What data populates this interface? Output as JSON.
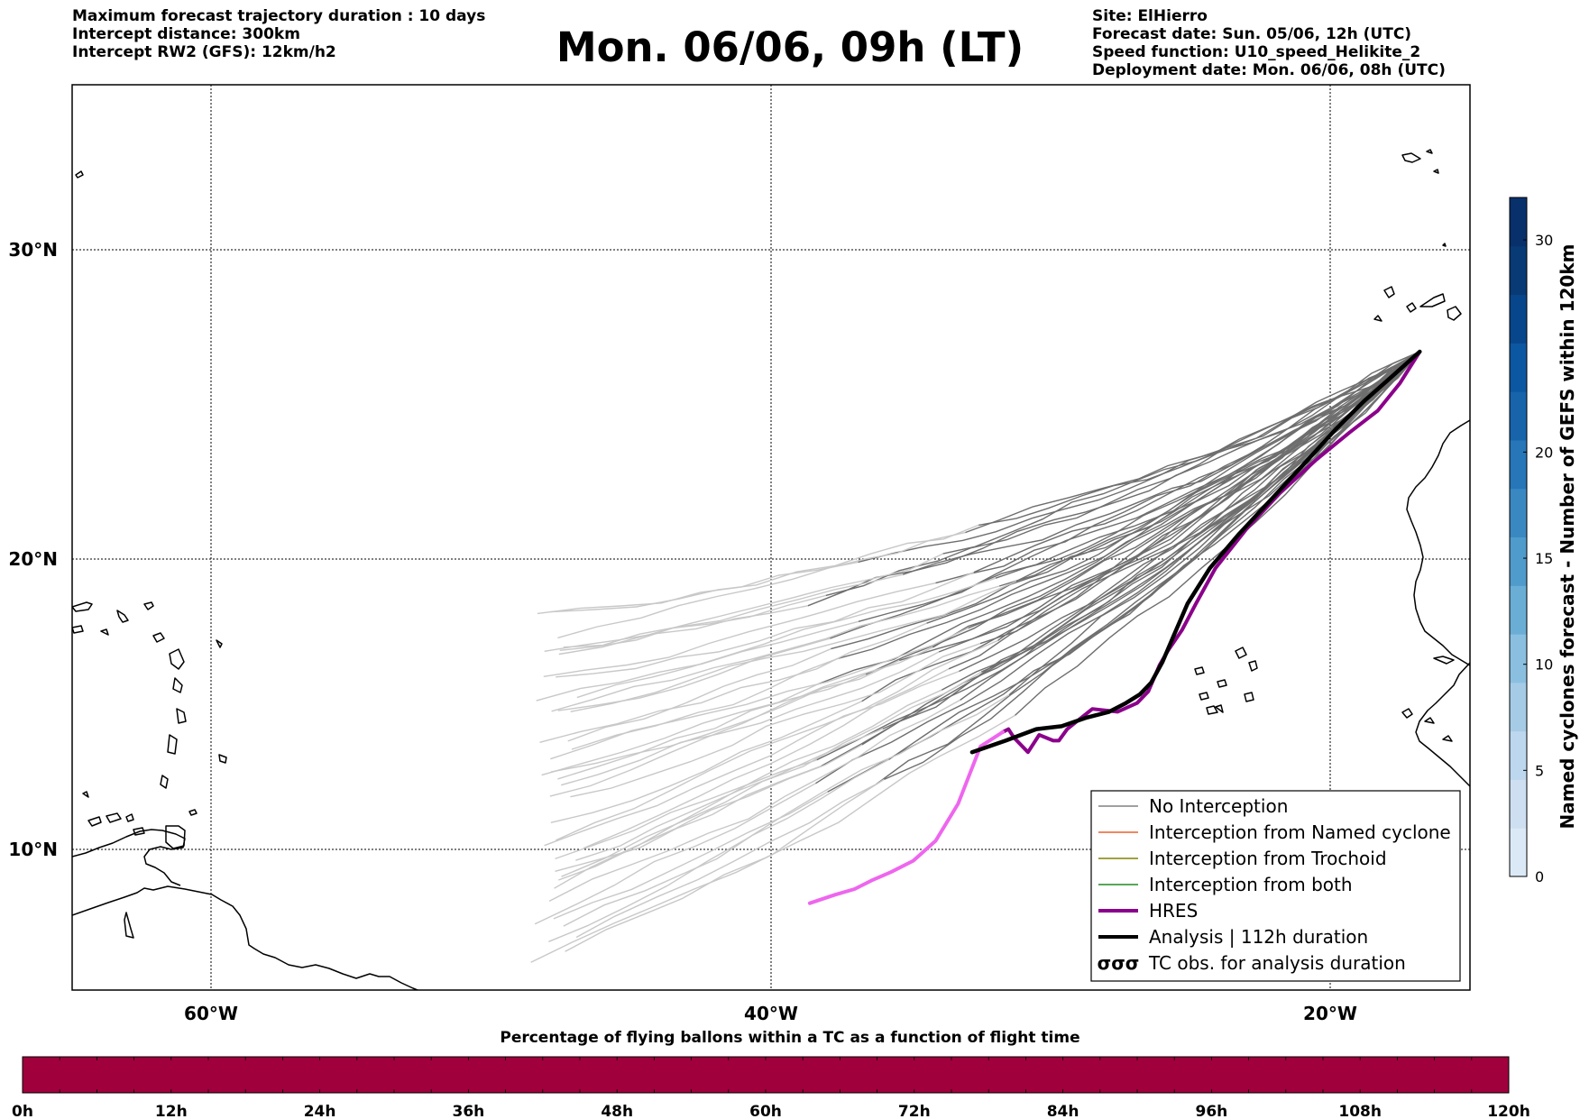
{
  "header_left": [
    "Maximum forecast trajectory duration : 10 days",
    "Intercept distance: 300km",
    "Intercept RW2 (GFS):  12km/h2"
  ],
  "header_right": [
    "Site: ElHierro",
    "Forecast date: Sun. 05/06, 12h (UTC)",
    "Speed function: U10_speed_Helikite_2",
    "Deployment date: Mon. 06/06, 08h (UTC)"
  ],
  "title": "Mon. 06/06, 09h (LT)",
  "map": {
    "lon_ticks": [
      "60°W",
      "40°W",
      "20°W"
    ],
    "lat_ticks": [
      "30°N",
      "20°N",
      "10°N"
    ],
    "grid": "dotted",
    "lon_range": [
      -65,
      -15
    ],
    "lat_range": [
      4.6,
      33.9
    ]
  },
  "legend": {
    "placement": "lower-right",
    "items": [
      {
        "label": "No Interception",
        "color": "#808080"
      },
      {
        "label": "Interception from Named cyclone",
        "color": "#e8602c"
      },
      {
        "label": "Interception from Trochoid",
        "color": "#808000"
      },
      {
        "label": "Interception from both",
        "color": "#1f8a1f"
      },
      {
        "label": "HRES",
        "color": "#8b008b"
      },
      {
        "label": "Analysis | 112h duration",
        "color": "#000000"
      },
      {
        "label": "TC obs. for analysis duration",
        "color": "#000000",
        "icon": "cyclone-symbols-icon"
      }
    ]
  },
  "colorbar_right": {
    "label": "Named cyclones forecast - Number of GEFS within 120km",
    "ticks": [
      "0",
      "5",
      "10",
      "15",
      "20",
      "30"
    ],
    "colors": [
      "#dbe9f6",
      "#cddff1",
      "#bcd7ee",
      "#a6cbe6",
      "#8abfe0",
      "#6aaed6",
      "#4f9bcb",
      "#3a88c1",
      "#2676b8",
      "#1764ab",
      "#0c57a1",
      "#08468b",
      "#083a75",
      "#08306b"
    ]
  },
  "colorbar_bottom": {
    "title": "Percentage of flying ballons within a TC as a function of flight time",
    "ticks": [
      "0h",
      "12h",
      "24h",
      "36h",
      "48h",
      "60h",
      "72h",
      "84h",
      "96h",
      "108h",
      "120h"
    ],
    "fill_color": "#a0003c"
  },
  "chart_data": {
    "type": "line",
    "series": [
      {
        "name": "HRES",
        "color": "#8b008b",
        "x": [
          -16.8,
          -17.5,
          -18.3,
          -19.3,
          -20.5,
          -21.8,
          -23.0,
          -24.1,
          -24.8,
          -25.3,
          -25.8,
          -26.1,
          -26.5,
          -26.9,
          -27.6,
          -28.5,
          -29.4,
          -29.7,
          -29.9,
          -30.4,
          -30.8,
          -31.3,
          -31.5,
          -31.7
        ],
        "y": [
          26.8,
          25.8,
          24.9,
          24.2,
          23.3,
          22.2,
          21.0,
          19.7,
          18.5,
          17.6,
          16.9,
          16.4,
          15.5,
          15.1,
          14.8,
          14.9,
          14.2,
          13.8,
          13.8,
          14.0,
          13.4,
          13.9,
          14.2,
          14.1
        ],
        "note": "solid purple section"
      },
      {
        "name": "HRES",
        "color": "#ee66ee",
        "x": [
          -31.7,
          -32.5,
          -33.3,
          -34.1,
          -34.9,
          -35.7,
          -36.4,
          -37.0,
          -37.7,
          -38.6
        ],
        "y": [
          14.1,
          13.6,
          11.6,
          10.3,
          9.6,
          9.2,
          8.9,
          8.6,
          8.4,
          8.1
        ],
        "note": "pink continuation"
      },
      {
        "name": "Analysis | 112h duration",
        "color": "#000000",
        "x": [
          -16.8,
          -17.8,
          -18.8,
          -19.8,
          -21.0,
          -22.1,
          -23.3,
          -24.3,
          -25.1,
          -25.6,
          -26.0,
          -26.4,
          -26.8,
          -27.3,
          -27.9,
          -28.7,
          -29.6,
          -30.5,
          -31.6,
          -32.8
        ],
        "y": [
          26.8,
          26.0,
          25.2,
          24.3,
          23.1,
          22.0,
          20.8,
          19.7,
          18.5,
          17.4,
          16.5,
          15.8,
          15.4,
          15.1,
          14.8,
          14.6,
          14.3,
          14.2,
          13.8,
          13.4
        ]
      }
    ]
  }
}
